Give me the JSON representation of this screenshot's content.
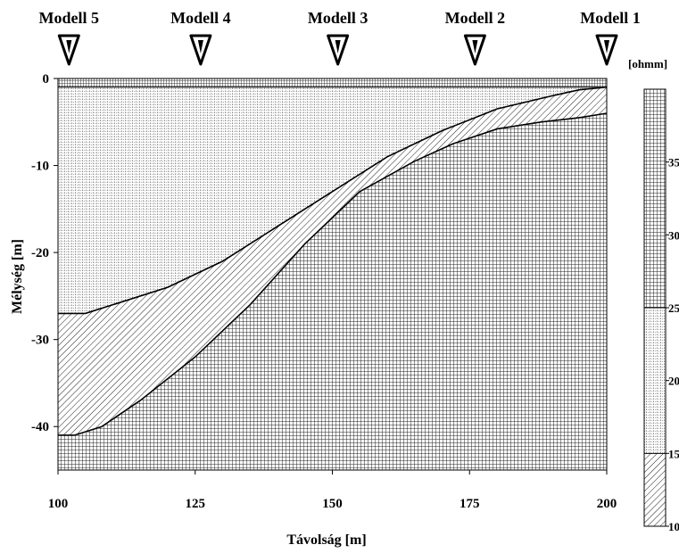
{
  "chart_data": {
    "type": "heatmap",
    "title": "",
    "xlabel": "Távolság [m]",
    "ylabel": "Mélység [m]",
    "xlim": [
      100,
      200
    ],
    "ylim": [
      -45,
      0
    ],
    "x_ticks": [
      "100",
      "125",
      "150",
      "175",
      "200"
    ],
    "x_tick_values": [
      100,
      125,
      150,
      175,
      200
    ],
    "y_ticks": [
      "0",
      "-10",
      "-20",
      "-30",
      "-40"
    ],
    "y_tick_values": [
      0,
      -10,
      -20,
      -30,
      -40
    ],
    "models": [
      {
        "label": "Modell 5",
        "x": 102
      },
      {
        "label": "Modell 4",
        "x": 126
      },
      {
        "label": "Modell 3",
        "x": 151
      },
      {
        "label": "Modell 2",
        "x": 176
      },
      {
        "label": "Modell 1",
        "x": 200
      }
    ],
    "layers": [
      {
        "name": "surface layer",
        "pattern": "dense-grid",
        "boundary_x": [
          100,
          125,
          150,
          175,
          200
        ],
        "boundary_depth": [
          -1,
          -1,
          -1,
          -1,
          -1
        ]
      },
      {
        "name": "upper layer",
        "pattern": "dotted-grid",
        "boundary_x": [
          100,
          105,
          110,
          120,
          130,
          140,
          150,
          160,
          170,
          180,
          190,
          195,
          200
        ],
        "boundary_depth": [
          -27,
          -27,
          -26,
          -24,
          -21,
          -17,
          -13,
          -9,
          -6,
          -3.5,
          -2,
          -1.3,
          -1
        ]
      },
      {
        "name": "middle layer",
        "pattern": "hatch",
        "boundary_x": [
          100,
          103,
          108,
          115,
          125,
          135,
          145,
          155,
          165,
          172,
          180,
          188,
          195,
          200
        ],
        "boundary_depth": [
          -41,
          -41,
          -40,
          -37,
          -32,
          -26,
          -19,
          -13,
          -9.5,
          -7.5,
          -5.8,
          -5,
          -4.5,
          -4
        ]
      },
      {
        "name": "bottom layer",
        "pattern": "coarse-grid",
        "boundary_x": [],
        "boundary_depth": []
      }
    ],
    "colorbar": {
      "unit_label": "[ohmm]",
      "ticks": [
        "35",
        "30",
        "25",
        "20",
        "15",
        "10"
      ],
      "tick_values": [
        35,
        30,
        25,
        20,
        15,
        10
      ],
      "range": [
        10,
        40
      ],
      "bands": [
        {
          "from": 10,
          "to": 15,
          "pattern": "hatch"
        },
        {
          "from": 15,
          "to": 25,
          "pattern": "dotted-grid"
        },
        {
          "from": 25,
          "to": 40,
          "pattern": "coarse-grid"
        }
      ]
    },
    "grid": false,
    "legend": "right"
  }
}
